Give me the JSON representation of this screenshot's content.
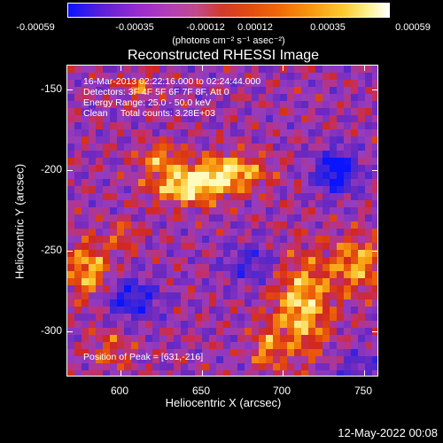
{
  "colorbar": {
    "tick_labels": [
      "-0.00059",
      "-0.00035",
      "-0.00012",
      "0.00012",
      "0.00035",
      "0.00059"
    ],
    "units": "(photons cm⁻² s⁻¹ asec⁻²)"
  },
  "title": "Reconstructed RHESSI Image",
  "info": {
    "time_range": "16-Mar-2013 02:22:16.000 to 02:24:44.000",
    "detectors": "Detectors: 3F 4F 5F 6F 7F 8F, Att 0",
    "energy": "Energy Range: 25.0 - 50.0 keV",
    "clean": "Clean     Total counts: 3.28E+03",
    "peak": "Position of Peak = [631,-216]"
  },
  "axes": {
    "xlabel": "Heliocentric X (arcsec)",
    "ylabel": "Heliocentric Y (arcsec)",
    "x_ticks": [
      "600",
      "650",
      "700",
      "750"
    ],
    "y_ticks": [
      "-150",
      "-200",
      "-250",
      "-300"
    ]
  },
  "datestamp": "12-May-2022 00:08"
}
